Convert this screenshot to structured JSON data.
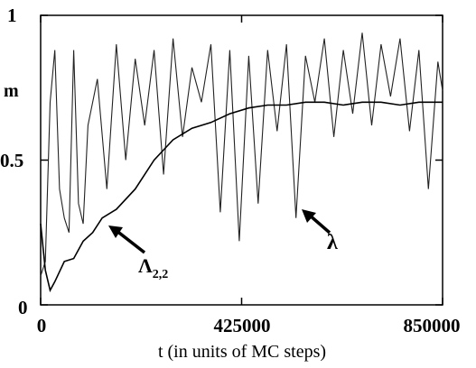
{
  "chart_data": {
    "type": "line",
    "xlabel": "t (in units of  MC steps)",
    "ylabel": "m",
    "xlim": [
      0,
      850000
    ],
    "ylim": [
      0,
      1
    ],
    "xticks": [
      "0",
      "425000",
      "850000"
    ],
    "yticks": [
      "0",
      "0.5",
      "1"
    ],
    "grid": false,
    "series": [
      {
        "name": "λ",
        "style": "fluctuating",
        "x": [
          0,
          10000,
          20000,
          30000,
          40000,
          50000,
          60000,
          70000,
          80000,
          90000,
          100000,
          120000,
          140000,
          160000,
          180000,
          200000,
          220000,
          240000,
          260000,
          280000,
          300000,
          320000,
          340000,
          360000,
          380000,
          400000,
          420000,
          440000,
          460000,
          480000,
          500000,
          520000,
          540000,
          560000,
          580000,
          600000,
          620000,
          640000,
          660000,
          680000,
          700000,
          720000,
          740000,
          760000,
          780000,
          800000,
          820000,
          840000,
          850000
        ],
        "values": [
          0.1,
          0.15,
          0.7,
          0.88,
          0.4,
          0.3,
          0.25,
          0.88,
          0.35,
          0.28,
          0.62,
          0.78,
          0.4,
          0.9,
          0.5,
          0.85,
          0.62,
          0.88,
          0.45,
          0.92,
          0.58,
          0.82,
          0.7,
          0.9,
          0.32,
          0.88,
          0.22,
          0.86,
          0.35,
          0.88,
          0.6,
          0.9,
          0.3,
          0.86,
          0.7,
          0.92,
          0.58,
          0.88,
          0.66,
          0.94,
          0.62,
          0.9,
          0.72,
          0.92,
          0.6,
          0.88,
          0.4,
          0.84,
          0.74
        ]
      },
      {
        "name": "Λ2,2",
        "style": "smooth",
        "x": [
          0,
          10000,
          20000,
          30000,
          50000,
          70000,
          90000,
          110000,
          130000,
          160000,
          200000,
          240000,
          280000,
          320000,
          360000,
          400000,
          440000,
          480000,
          520000,
          560000,
          600000,
          640000,
          680000,
          720000,
          760000,
          800000,
          850000
        ],
        "values": [
          0.28,
          0.12,
          0.05,
          0.08,
          0.15,
          0.16,
          0.22,
          0.25,
          0.3,
          0.33,
          0.4,
          0.5,
          0.57,
          0.61,
          0.63,
          0.66,
          0.68,
          0.69,
          0.69,
          0.7,
          0.7,
          0.69,
          0.7,
          0.7,
          0.69,
          0.7,
          0.7
        ]
      }
    ],
    "annotations": [
      {
        "label": "Λ",
        "sub": "2,2",
        "x": 150000,
        "y": 0.26,
        "series": "Λ2,2"
      },
      {
        "label": "λ",
        "x": 560000,
        "y": 0.3,
        "series": "λ"
      }
    ]
  }
}
